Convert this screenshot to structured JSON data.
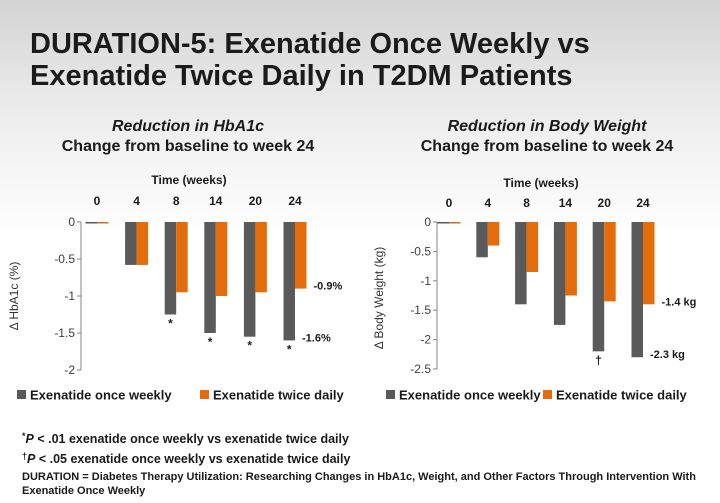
{
  "slide": {
    "title": "DURATION-5: Exenatide Once Weekly vs Exenatide Twice Daily in T2DM Patients"
  },
  "chart_data": [
    {
      "type": "bar",
      "title": "Reduction in HbA1c",
      "subtitle": "Change from baseline to week 24",
      "xlabel": "Time (weeks)",
      "ylabel": "Δ HbA1c (%)",
      "x_axis_position": "top",
      "categories": [
        "0",
        "4",
        "8",
        "14",
        "20",
        "24"
      ],
      "ylim": [
        -2,
        0
      ],
      "yticks": [
        0,
        -0.5,
        -1,
        -1.5,
        -2
      ],
      "grid": false,
      "legend": "bottom",
      "series": [
        {
          "name": "Exenatide once weekly",
          "color": "#5a5a5a",
          "values": [
            0,
            -0.58,
            -1.25,
            -1.5,
            -1.55,
            -1.6
          ]
        },
        {
          "name": "Exenatide twice daily",
          "color": "#e46c0a",
          "values": [
            0,
            -0.58,
            -0.95,
            -1.0,
            -0.95,
            -0.9
          ]
        }
      ],
      "significance_marks": [
        {
          "series": 0,
          "category": 2,
          "text": "*"
        },
        {
          "series": 0,
          "category": 3,
          "text": "*"
        },
        {
          "series": 0,
          "category": 4,
          "text": "*"
        },
        {
          "series": 0,
          "category": 5,
          "text": "*"
        }
      ],
      "data_labels": [
        {
          "series": 1,
          "category": 5,
          "text": "-0.9%"
        },
        {
          "series": 0,
          "category": 5,
          "text": "-1.6%"
        }
      ]
    },
    {
      "type": "bar",
      "title": "Reduction in Body Weight",
      "subtitle": "Change from baseline to week 24",
      "xlabel": "Time (weeks)",
      "ylabel": "Δ Body Weight (kg)",
      "x_axis_position": "top",
      "categories": [
        "0",
        "4",
        "8",
        "14",
        "20",
        "24"
      ],
      "ylim": [
        -2.5,
        0
      ],
      "yticks": [
        0,
        -0.5,
        -1,
        -1.5,
        -2,
        -2.5
      ],
      "grid": false,
      "legend": "bottom",
      "series": [
        {
          "name": "Exenatide once weekly",
          "color": "#5a5a5a",
          "values": [
            0,
            -0.6,
            -1.4,
            -1.75,
            -2.2,
            -2.3
          ]
        },
        {
          "name": "Exenatide twice daily",
          "color": "#e46c0a",
          "values": [
            0,
            -0.4,
            -0.85,
            -1.25,
            -1.35,
            -1.4
          ]
        }
      ],
      "significance_marks": [
        {
          "series": 0,
          "category": 4,
          "text": "†"
        }
      ],
      "data_labels": [
        {
          "series": 1,
          "category": 5,
          "text": "-1.4 kg"
        },
        {
          "series": 0,
          "category": 5,
          "text": "-2.3 kg"
        }
      ]
    }
  ],
  "footnotes": [
    {
      "mark": "*",
      "italic": "P",
      "text": " < .01 exenatide once weekly vs exenatide twice daily"
    },
    {
      "mark": "†",
      "italic": "P",
      "text": " < .05 exenatide once weekly vs exenatide twice daily"
    }
  ],
  "definition": "DURATION = Diabetes Therapy Utilization: Researching Changes in HbA1c, Weight, and Other Factors Through Intervention With Exenatide Once Weekly"
}
